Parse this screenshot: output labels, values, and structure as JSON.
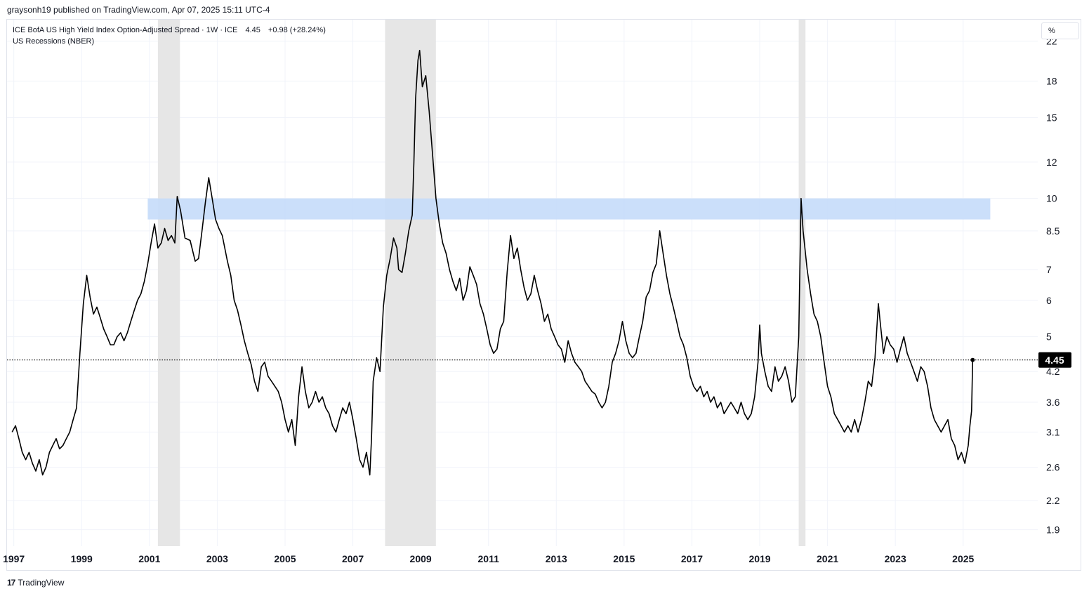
{
  "header": {
    "published_text": "graysonh19 published on TradingView.com, Apr 07, 2025 15:11 UTC-4"
  },
  "legend": {
    "series_title": "ICE BofA US High Yield Index Option-Adjusted Spread · 1W · ICE",
    "last_value": "4.45",
    "change": "+0.98 (+28.24%)",
    "recession_label": "US Recessions (NBER)"
  },
  "unit_button": "%",
  "footer": {
    "logo_glyph": "17",
    "brand": "TradingView"
  },
  "colors": {
    "line": "#000000",
    "recession_band": "#e6e6e6",
    "highlight_zone": "#c5dcfa",
    "price_label_bg": "#000000",
    "price_label_text": "#ffffff",
    "axis_text": "#131722"
  },
  "chart_data": {
    "type": "line",
    "title": "ICE BofA US High Yield Index Option-Adjusted Spread",
    "xlabel": "",
    "ylabel": "",
    "y_scale": "log",
    "unit": "%",
    "ylim": [
      1.75,
      24.5
    ],
    "xlim": [
      1996.8,
      2027.2
    ],
    "y_ticks": [
      22,
      18,
      15,
      12,
      10,
      8.5,
      7,
      6,
      5,
      4.2,
      3.6,
      3.1,
      2.6,
      2.2,
      1.9
    ],
    "x_ticks": [
      1997,
      1999,
      2001,
      2003,
      2005,
      2007,
      2009,
      2011,
      2013,
      2015,
      2017,
      2019,
      2021,
      2023,
      2025
    ],
    "last_value": 4.45,
    "last_value_label": "4.45",
    "grid": true,
    "recessions": [
      {
        "start": 2001.25,
        "end": 2001.9
      },
      {
        "start": 2007.95,
        "end": 2009.45
      },
      {
        "start": 2020.15,
        "end": 2020.35
      }
    ],
    "highlight_zone": {
      "low": 9.0,
      "high": 10.0,
      "x_start": 2000.95,
      "x_end": 2025.8
    },
    "series": [
      {
        "name": "ICE BofA US High Yield Index Option-Adjusted Spread",
        "points": [
          [
            1996.95,
            3.1
          ],
          [
            1997.05,
            3.2
          ],
          [
            1997.15,
            3.0
          ],
          [
            1997.25,
            2.8
          ],
          [
            1997.35,
            2.7
          ],
          [
            1997.45,
            2.8
          ],
          [
            1997.55,
            2.65
          ],
          [
            1997.65,
            2.55
          ],
          [
            1997.75,
            2.7
          ],
          [
            1997.85,
            2.5
          ],
          [
            1997.95,
            2.6
          ],
          [
            1998.05,
            2.8
          ],
          [
            1998.15,
            2.9
          ],
          [
            1998.25,
            3.0
          ],
          [
            1998.35,
            2.85
          ],
          [
            1998.45,
            2.9
          ],
          [
            1998.55,
            3.0
          ],
          [
            1998.65,
            3.1
          ],
          [
            1998.75,
            3.3
          ],
          [
            1998.85,
            3.5
          ],
          [
            1998.95,
            4.6
          ],
          [
            1999.05,
            5.9
          ],
          [
            1999.15,
            6.8
          ],
          [
            1999.25,
            6.1
          ],
          [
            1999.35,
            5.6
          ],
          [
            1999.45,
            5.8
          ],
          [
            1999.55,
            5.5
          ],
          [
            1999.65,
            5.2
          ],
          [
            1999.75,
            5.0
          ],
          [
            1999.85,
            4.8
          ],
          [
            1999.95,
            4.8
          ],
          [
            2000.05,
            5.0
          ],
          [
            2000.15,
            5.1
          ],
          [
            2000.25,
            4.9
          ],
          [
            2000.35,
            5.1
          ],
          [
            2000.45,
            5.4
          ],
          [
            2000.55,
            5.7
          ],
          [
            2000.65,
            6.0
          ],
          [
            2000.75,
            6.2
          ],
          [
            2000.85,
            6.6
          ],
          [
            2000.95,
            7.2
          ],
          [
            2001.05,
            8.0
          ],
          [
            2001.15,
            8.8
          ],
          [
            2001.25,
            7.8
          ],
          [
            2001.35,
            8.0
          ],
          [
            2001.45,
            8.6
          ],
          [
            2001.55,
            8.1
          ],
          [
            2001.65,
            8.3
          ],
          [
            2001.75,
            8.0
          ],
          [
            2001.82,
            10.1
          ],
          [
            2001.92,
            9.4
          ],
          [
            2002.05,
            8.2
          ],
          [
            2002.2,
            8.1
          ],
          [
            2002.35,
            7.3
          ],
          [
            2002.45,
            7.4
          ],
          [
            2002.55,
            8.5
          ],
          [
            2002.65,
            9.8
          ],
          [
            2002.75,
            11.1
          ],
          [
            2002.85,
            10.0
          ],
          [
            2002.95,
            9.0
          ],
          [
            2003.05,
            8.6
          ],
          [
            2003.15,
            8.3
          ],
          [
            2003.3,
            7.3
          ],
          [
            2003.4,
            6.8
          ],
          [
            2003.5,
            6.0
          ],
          [
            2003.6,
            5.7
          ],
          [
            2003.7,
            5.3
          ],
          [
            2003.8,
            4.9
          ],
          [
            2003.9,
            4.6
          ],
          [
            2004.0,
            4.35
          ],
          [
            2004.1,
            4.0
          ],
          [
            2004.2,
            3.8
          ],
          [
            2004.3,
            4.3
          ],
          [
            2004.4,
            4.4
          ],
          [
            2004.5,
            4.1
          ],
          [
            2004.6,
            4.0
          ],
          [
            2004.7,
            3.9
          ],
          [
            2004.8,
            3.8
          ],
          [
            2004.9,
            3.6
          ],
          [
            2005.0,
            3.3
          ],
          [
            2005.1,
            3.1
          ],
          [
            2005.2,
            3.3
          ],
          [
            2005.3,
            2.9
          ],
          [
            2005.4,
            3.7
          ],
          [
            2005.5,
            4.3
          ],
          [
            2005.6,
            3.8
          ],
          [
            2005.7,
            3.5
          ],
          [
            2005.8,
            3.6
          ],
          [
            2005.9,
            3.8
          ],
          [
            2006.0,
            3.6
          ],
          [
            2006.1,
            3.7
          ],
          [
            2006.2,
            3.5
          ],
          [
            2006.3,
            3.4
          ],
          [
            2006.4,
            3.2
          ],
          [
            2006.5,
            3.1
          ],
          [
            2006.6,
            3.3
          ],
          [
            2006.7,
            3.5
          ],
          [
            2006.8,
            3.4
          ],
          [
            2006.9,
            3.6
          ],
          [
            2007.0,
            3.3
          ],
          [
            2007.1,
            3.0
          ],
          [
            2007.2,
            2.7
          ],
          [
            2007.3,
            2.6
          ],
          [
            2007.4,
            2.8
          ],
          [
            2007.5,
            2.5
          ],
          [
            2007.55,
            3.0
          ],
          [
            2007.6,
            4.0
          ],
          [
            2007.7,
            4.5
          ],
          [
            2007.8,
            4.2
          ],
          [
            2007.9,
            5.8
          ],
          [
            2008.0,
            6.8
          ],
          [
            2008.1,
            7.4
          ],
          [
            2008.2,
            8.2
          ],
          [
            2008.3,
            7.8
          ],
          [
            2008.35,
            7.0
          ],
          [
            2008.45,
            6.9
          ],
          [
            2008.55,
            7.6
          ],
          [
            2008.65,
            8.5
          ],
          [
            2008.75,
            9.2
          ],
          [
            2008.8,
            12.0
          ],
          [
            2008.85,
            16.5
          ],
          [
            2008.92,
            20.0
          ],
          [
            2008.97,
            21.0
          ],
          [
            2009.05,
            17.5
          ],
          [
            2009.15,
            18.5
          ],
          [
            2009.25,
            15.5
          ],
          [
            2009.35,
            12.5
          ],
          [
            2009.45,
            10.0
          ],
          [
            2009.55,
            8.8
          ],
          [
            2009.65,
            8.0
          ],
          [
            2009.75,
            7.6
          ],
          [
            2009.85,
            7.0
          ],
          [
            2009.95,
            6.6
          ],
          [
            2010.05,
            6.3
          ],
          [
            2010.15,
            6.7
          ],
          [
            2010.25,
            6.0
          ],
          [
            2010.35,
            6.3
          ],
          [
            2010.45,
            7.1
          ],
          [
            2010.55,
            6.8
          ],
          [
            2010.65,
            6.5
          ],
          [
            2010.75,
            5.9
          ],
          [
            2010.85,
            5.6
          ],
          [
            2010.95,
            5.2
          ],
          [
            2011.05,
            4.8
          ],
          [
            2011.15,
            4.6
          ],
          [
            2011.25,
            4.7
          ],
          [
            2011.35,
            5.2
          ],
          [
            2011.45,
            5.4
          ],
          [
            2011.55,
            6.9
          ],
          [
            2011.65,
            8.3
          ],
          [
            2011.75,
            7.4
          ],
          [
            2011.85,
            7.8
          ],
          [
            2011.95,
            7.0
          ],
          [
            2012.05,
            6.4
          ],
          [
            2012.15,
            6.0
          ],
          [
            2012.25,
            6.2
          ],
          [
            2012.35,
            6.8
          ],
          [
            2012.45,
            6.3
          ],
          [
            2012.55,
            5.9
          ],
          [
            2012.65,
            5.4
          ],
          [
            2012.75,
            5.6
          ],
          [
            2012.85,
            5.2
          ],
          [
            2012.95,
            5.0
          ],
          [
            2013.05,
            4.8
          ],
          [
            2013.15,
            4.7
          ],
          [
            2013.25,
            4.4
          ],
          [
            2013.35,
            4.9
          ],
          [
            2013.45,
            4.6
          ],
          [
            2013.55,
            4.4
          ],
          [
            2013.65,
            4.3
          ],
          [
            2013.75,
            4.2
          ],
          [
            2013.85,
            4.0
          ],
          [
            2013.95,
            3.9
          ],
          [
            2014.05,
            3.8
          ],
          [
            2014.15,
            3.75
          ],
          [
            2014.25,
            3.6
          ],
          [
            2014.35,
            3.5
          ],
          [
            2014.45,
            3.6
          ],
          [
            2014.55,
            3.9
          ],
          [
            2014.65,
            4.4
          ],
          [
            2014.75,
            4.6
          ],
          [
            2014.85,
            4.9
          ],
          [
            2014.95,
            5.4
          ],
          [
            2015.05,
            4.9
          ],
          [
            2015.15,
            4.6
          ],
          [
            2015.25,
            4.5
          ],
          [
            2015.35,
            4.6
          ],
          [
            2015.45,
            5.0
          ],
          [
            2015.55,
            5.4
          ],
          [
            2015.65,
            6.1
          ],
          [
            2015.75,
            6.3
          ],
          [
            2015.85,
            6.9
          ],
          [
            2015.95,
            7.2
          ],
          [
            2016.05,
            8.5
          ],
          [
            2016.15,
            7.6
          ],
          [
            2016.25,
            6.8
          ],
          [
            2016.35,
            6.2
          ],
          [
            2016.45,
            5.8
          ],
          [
            2016.55,
            5.4
          ],
          [
            2016.65,
            5.0
          ],
          [
            2016.75,
            4.8
          ],
          [
            2016.85,
            4.5
          ],
          [
            2016.95,
            4.1
          ],
          [
            2017.05,
            3.9
          ],
          [
            2017.15,
            3.8
          ],
          [
            2017.25,
            3.9
          ],
          [
            2017.35,
            3.7
          ],
          [
            2017.45,
            3.8
          ],
          [
            2017.55,
            3.6
          ],
          [
            2017.65,
            3.7
          ],
          [
            2017.75,
            3.5
          ],
          [
            2017.85,
            3.6
          ],
          [
            2017.95,
            3.4
          ],
          [
            2018.05,
            3.5
          ],
          [
            2018.15,
            3.6
          ],
          [
            2018.25,
            3.5
          ],
          [
            2018.35,
            3.4
          ],
          [
            2018.45,
            3.6
          ],
          [
            2018.55,
            3.4
          ],
          [
            2018.65,
            3.3
          ],
          [
            2018.75,
            3.4
          ],
          [
            2018.85,
            3.7
          ],
          [
            2018.95,
            4.4
          ],
          [
            2019.0,
            5.3
          ],
          [
            2019.05,
            4.6
          ],
          [
            2019.15,
            4.2
          ],
          [
            2019.25,
            3.9
          ],
          [
            2019.35,
            3.8
          ],
          [
            2019.45,
            4.3
          ],
          [
            2019.55,
            4.0
          ],
          [
            2019.65,
            4.1
          ],
          [
            2019.75,
            4.3
          ],
          [
            2019.85,
            4.0
          ],
          [
            2019.95,
            3.6
          ],
          [
            2020.05,
            3.7
          ],
          [
            2020.15,
            5.0
          ],
          [
            2020.22,
            10.0
          ],
          [
            2020.28,
            8.5
          ],
          [
            2020.4,
            7.0
          ],
          [
            2020.5,
            6.2
          ],
          [
            2020.6,
            5.6
          ],
          [
            2020.7,
            5.4
          ],
          [
            2020.8,
            5.0
          ],
          [
            2020.9,
            4.4
          ],
          [
            2021.0,
            3.9
          ],
          [
            2021.1,
            3.7
          ],
          [
            2021.2,
            3.4
          ],
          [
            2021.3,
            3.3
          ],
          [
            2021.4,
            3.2
          ],
          [
            2021.5,
            3.1
          ],
          [
            2021.6,
            3.2
          ],
          [
            2021.7,
            3.1
          ],
          [
            2021.8,
            3.3
          ],
          [
            2021.9,
            3.1
          ],
          [
            2022.0,
            3.3
          ],
          [
            2022.1,
            3.6
          ],
          [
            2022.2,
            4.0
          ],
          [
            2022.3,
            3.9
          ],
          [
            2022.4,
            4.5
          ],
          [
            2022.5,
            5.9
          ],
          [
            2022.55,
            5.4
          ],
          [
            2022.65,
            4.6
          ],
          [
            2022.75,
            5.0
          ],
          [
            2022.85,
            4.8
          ],
          [
            2022.95,
            4.7
          ],
          [
            2023.05,
            4.4
          ],
          [
            2023.15,
            4.7
          ],
          [
            2023.25,
            5.0
          ],
          [
            2023.35,
            4.6
          ],
          [
            2023.45,
            4.4
          ],
          [
            2023.55,
            4.2
          ],
          [
            2023.65,
            4.0
          ],
          [
            2023.75,
            4.3
          ],
          [
            2023.85,
            4.2
          ],
          [
            2023.95,
            3.9
          ],
          [
            2024.05,
            3.5
          ],
          [
            2024.15,
            3.3
          ],
          [
            2024.25,
            3.2
          ],
          [
            2024.35,
            3.1
          ],
          [
            2024.45,
            3.2
          ],
          [
            2024.55,
            3.3
          ],
          [
            2024.65,
            3.0
          ],
          [
            2024.75,
            2.9
          ],
          [
            2024.85,
            2.7
          ],
          [
            2024.95,
            2.8
          ],
          [
            2025.05,
            2.65
          ],
          [
            2025.15,
            2.9
          ],
          [
            2025.2,
            3.2
          ],
          [
            2025.25,
            3.45
          ],
          [
            2025.28,
            4.45
          ]
        ]
      }
    ]
  }
}
